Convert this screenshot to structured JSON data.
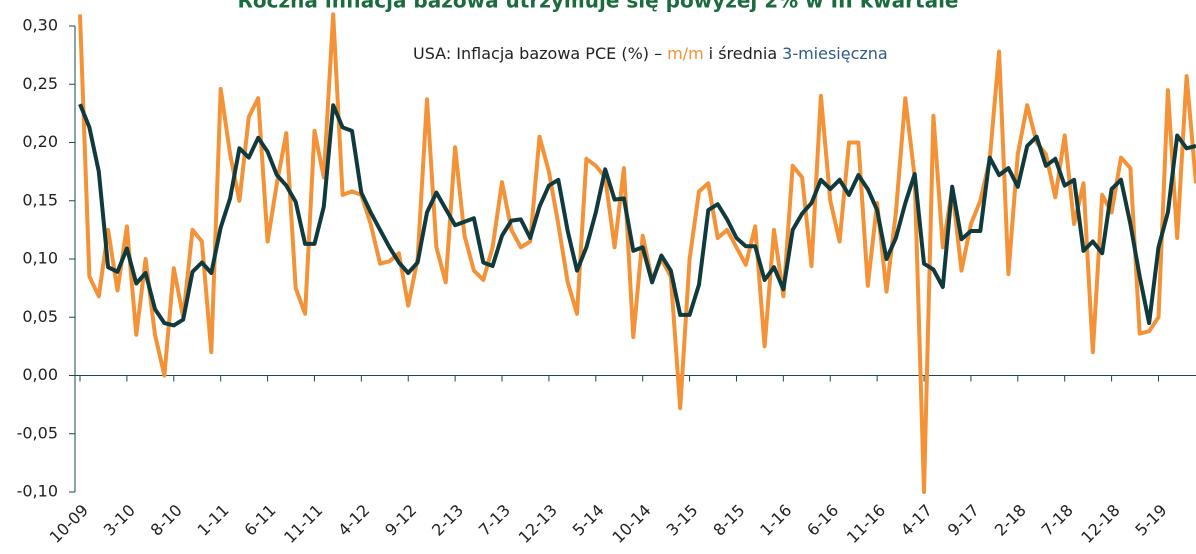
{
  "chart_data": {
    "type": "line",
    "title": "Roczna inflacja bazowa utrzymuje się powyżej 2% w III kwartale",
    "annotation": [
      "USA: Inflacja bazowa PCE (%) –",
      "i średnia"
    ],
    "categories": [
      "10-09",
      null,
      null,
      null,
      null,
      "3-10",
      null,
      null,
      null,
      null,
      "8-10",
      null,
      null,
      null,
      null,
      "1-11",
      null,
      null,
      null,
      null,
      "6-11",
      null,
      null,
      null,
      null,
      "11-11",
      null,
      null,
      null,
      null,
      "4-12",
      null,
      null,
      null,
      null,
      "9-12",
      null,
      null,
      null,
      null,
      "2-13",
      null,
      null,
      null,
      null,
      "7-13",
      null,
      null,
      null,
      null,
      "12-13",
      null,
      null,
      null,
      null,
      "5-14",
      null,
      null,
      null,
      null,
      "10-14",
      null,
      null,
      null,
      null,
      "3-15",
      null,
      null,
      null,
      null,
      "8-15",
      null,
      null,
      null,
      null,
      "1-16",
      null,
      null,
      null,
      null,
      "6-16",
      null,
      null,
      null,
      null,
      "11-16",
      null,
      null,
      null,
      null,
      "4-17",
      null,
      null,
      null,
      null,
      "9-17",
      null,
      null,
      null,
      null,
      "2-18",
      null,
      null,
      null,
      null,
      "7-18",
      null,
      null,
      null,
      null,
      "12-18",
      null,
      null,
      null,
      null,
      "5-19",
      null,
      null,
      null,
      null
    ],
    "series": [
      {
        "name": "m/m",
        "color": "#f39237",
        "values": [
          0.31,
          0.085,
          0.068,
          0.125,
          0.073,
          0.128,
          0.035,
          0.1,
          0.035,
          0.0,
          0.092,
          0.05,
          0.125,
          0.115,
          0.02,
          0.246,
          0.19,
          0.15,
          0.222,
          0.238,
          0.115,
          0.165,
          0.208,
          0.075,
          0.053,
          0.21,
          0.17,
          0.31,
          0.155,
          0.158,
          0.155,
          0.13,
          0.096,
          0.098,
          0.105,
          0.06,
          0.1,
          0.237,
          0.11,
          0.08,
          0.196,
          0.12,
          0.09,
          0.082,
          0.11,
          0.166,
          0.125,
          0.11,
          0.115,
          0.205,
          0.175,
          0.13,
          0.08,
          0.053,
          0.186,
          0.18,
          0.17,
          0.11,
          0.178,
          0.033,
          0.12,
          0.082,
          0.1,
          0.085,
          -0.028,
          0.1,
          0.158,
          0.165,
          0.118,
          0.125,
          0.11,
          0.095,
          0.128,
          0.025,
          0.125,
          0.068,
          0.18,
          0.17,
          0.094,
          0.24,
          0.15,
          0.115,
          0.2,
          0.2,
          0.077,
          0.148,
          0.072,
          0.14,
          0.238,
          0.17,
          -0.1,
          0.223,
          0.11,
          0.16,
          0.09,
          0.13,
          0.15,
          0.185,
          0.278,
          0.087,
          0.19,
          0.232,
          0.2,
          0.19,
          0.153,
          0.206,
          0.13,
          0.165,
          0.02,
          0.155,
          0.14,
          0.187,
          0.178,
          0.036,
          0.038,
          0.05,
          0.245,
          0.118,
          0.257,
          0.165
        ]
      },
      {
        "name": "3-miesięczna",
        "color": "#0f3a3e",
        "values": [
          0.233,
          0.213,
          0.175,
          0.093,
          0.089,
          0.109,
          0.079,
          0.088,
          0.057,
          0.045,
          0.043,
          0.048,
          0.089,
          0.097,
          0.088,
          0.127,
          0.152,
          0.195,
          0.187,
          0.204,
          0.192,
          0.172,
          0.163,
          0.149,
          0.113,
          0.113,
          0.145,
          0.232,
          0.213,
          0.21,
          0.157,
          0.14,
          0.125,
          0.11,
          0.097,
          0.088,
          0.097,
          0.14,
          0.157,
          0.143,
          0.129,
          0.132,
          0.135,
          0.097,
          0.094,
          0.12,
          0.133,
          0.134,
          0.118,
          0.145,
          0.163,
          0.168,
          0.124,
          0.09,
          0.11,
          0.14,
          0.177,
          0.151,
          0.152,
          0.107,
          0.11,
          0.08,
          0.103,
          0.09,
          0.052,
          0.052,
          0.078,
          0.142,
          0.147,
          0.134,
          0.118,
          0.111,
          0.111,
          0.082,
          0.093,
          0.074,
          0.125,
          0.139,
          0.148,
          0.168,
          0.16,
          0.168,
          0.155,
          0.172,
          0.16,
          0.142,
          0.1,
          0.118,
          0.148,
          0.173,
          0.096,
          0.091,
          0.076,
          0.162,
          0.117,
          0.124,
          0.124,
          0.187,
          0.172,
          0.178,
          0.162,
          0.197,
          0.205,
          0.18,
          0.186,
          0.163,
          0.168,
          0.107,
          0.115,
          0.105,
          0.16,
          0.168,
          0.13,
          0.085,
          0.045,
          0.11,
          0.14,
          0.206,
          0.195,
          0.197
        ]
      }
    ],
    "ylim": [
      -0.1,
      0.3
    ],
    "yticks": [
      {
        "value": -0.1,
        "label": "-0,10"
      },
      {
        "value": -0.05,
        "label": "-0,05"
      },
      {
        "value": 0,
        "label": "0,00"
      },
      {
        "value": 0.05,
        "label": "0,05"
      },
      {
        "value": 0.1,
        "label": "0,10"
      },
      {
        "value": 0.15,
        "label": "0,15"
      },
      {
        "value": 0.2,
        "label": "0,20"
      },
      {
        "value": 0.25,
        "label": "0,25"
      },
      {
        "value": 0.3,
        "label": "0,30"
      }
    ],
    "grid": false
  }
}
